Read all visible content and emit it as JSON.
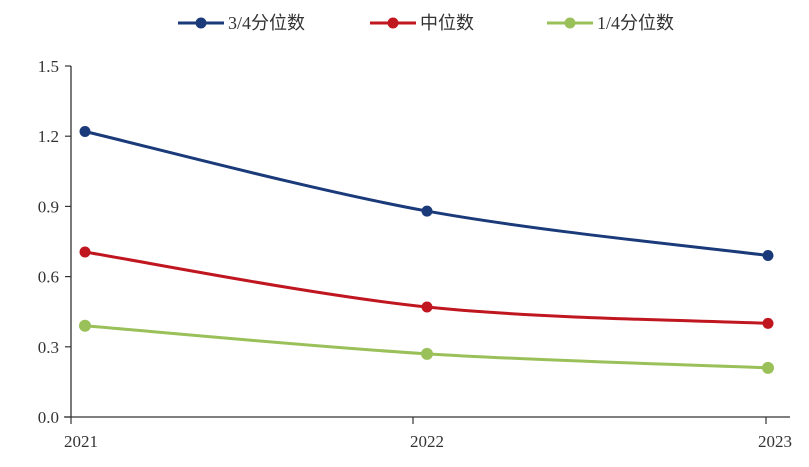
{
  "chart_data": {
    "type": "line",
    "title": "",
    "xlabel": "",
    "ylabel": "",
    "categories": [
      "2021",
      "2022",
      "2023"
    ],
    "ylim": [
      0.0,
      1.5
    ],
    "yticks": [
      "0.0",
      "0.3",
      "0.6",
      "0.9",
      "1.2",
      "1.5"
    ],
    "grid": false,
    "legend_position": "top",
    "series": [
      {
        "name": "3/4分位数",
        "color": "#1a3a7a",
        "values": [
          1.22,
          0.88,
          0.69
        ]
      },
      {
        "name": "中位数",
        "color": "#c0161f",
        "values": [
          0.705,
          0.47,
          0.4
        ]
      },
      {
        "name": "1/4分位数",
        "color": "#9ac05a",
        "values": [
          0.39,
          0.27,
          0.21
        ]
      }
    ]
  }
}
